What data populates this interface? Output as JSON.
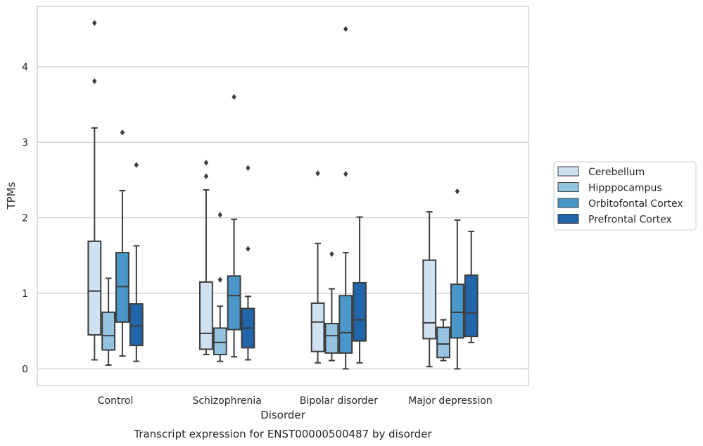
{
  "caption": "Transcript expression for ENST00000500487 by disorder",
  "chart_data": {
    "type": "box",
    "xlabel": "Disorder",
    "ylabel": "TPMs",
    "ylim": [
      -0.22,
      4.8
    ],
    "yticks": [
      0,
      1,
      2,
      3,
      4
    ],
    "grid": "horizontal",
    "legend_position": "right",
    "categories": [
      "Control",
      "Schizophrenia",
      "Bipolar disorder",
      "Major depression"
    ],
    "series": [
      {
        "name": "Cerebellum",
        "color": "#d0e1f2",
        "boxes": [
          {
            "whisker_low": 0.12,
            "q1": 0.45,
            "median": 1.03,
            "q3": 1.69,
            "whisker_high": 3.19,
            "outliers": [
              3.81,
              4.58
            ]
          },
          {
            "whisker_low": 0.19,
            "q1": 0.26,
            "median": 0.47,
            "q3": 1.15,
            "whisker_high": 2.37,
            "outliers": [
              2.55,
              2.73
            ]
          },
          {
            "whisker_low": 0.08,
            "q1": 0.23,
            "median": 0.62,
            "q3": 0.87,
            "whisker_high": 1.66,
            "outliers": [
              2.59
            ]
          },
          {
            "whisker_low": 0.03,
            "q1": 0.4,
            "median": 0.61,
            "q3": 1.44,
            "whisker_high": 2.08,
            "outliers": []
          }
        ]
      },
      {
        "name": "Hipppocampus",
        "color": "#94c4df",
        "boxes": [
          {
            "whisker_low": 0.05,
            "q1": 0.25,
            "median": 0.44,
            "q3": 0.75,
            "whisker_high": 1.2,
            "outliers": []
          },
          {
            "whisker_low": 0.1,
            "q1": 0.19,
            "median": 0.35,
            "q3": 0.54,
            "whisker_high": 0.83,
            "outliers": [
              1.18,
              2.04
            ]
          },
          {
            "whisker_low": 0.11,
            "q1": 0.21,
            "median": 0.44,
            "q3": 0.6,
            "whisker_high": 1.06,
            "outliers": [
              1.52
            ]
          },
          {
            "whisker_low": 0.11,
            "q1": 0.15,
            "median": 0.33,
            "q3": 0.55,
            "whisker_high": 0.65,
            "outliers": []
          }
        ]
      },
      {
        "name": "Orbitofontal Cortex",
        "color": "#4a98c9",
        "boxes": [
          {
            "whisker_low": 0.17,
            "q1": 0.62,
            "median": 1.09,
            "q3": 1.54,
            "whisker_high": 2.36,
            "outliers": [
              3.13
            ]
          },
          {
            "whisker_low": 0.16,
            "q1": 0.52,
            "median": 0.97,
            "q3": 1.23,
            "whisker_high": 1.98,
            "outliers": [
              3.6
            ]
          },
          {
            "whisker_low": 0.0,
            "q1": 0.21,
            "median": 0.48,
            "q3": 0.97,
            "whisker_high": 1.54,
            "outliers": [
              2.58,
              4.5
            ]
          },
          {
            "whisker_low": 0.0,
            "q1": 0.41,
            "median": 0.75,
            "q3": 1.12,
            "whisker_high": 1.97,
            "outliers": [
              2.35
            ]
          }
        ]
      },
      {
        "name": "Prefrontal Cortex",
        "color": "#2165ab",
        "boxes": [
          {
            "whisker_low": 0.1,
            "q1": 0.31,
            "median": 0.57,
            "q3": 0.86,
            "whisker_high": 1.63,
            "outliers": [
              2.7
            ]
          },
          {
            "whisker_low": 0.12,
            "q1": 0.28,
            "median": 0.54,
            "q3": 0.8,
            "whisker_high": 0.96,
            "outliers": [
              1.59,
              2.66
            ]
          },
          {
            "whisker_low": 0.08,
            "q1": 0.37,
            "median": 0.65,
            "q3": 1.14,
            "whisker_high": 2.01,
            "outliers": []
          },
          {
            "whisker_low": 0.35,
            "q1": 0.43,
            "median": 0.74,
            "q3": 1.24,
            "whisker_high": 1.82,
            "outliers": []
          }
        ]
      }
    ]
  }
}
